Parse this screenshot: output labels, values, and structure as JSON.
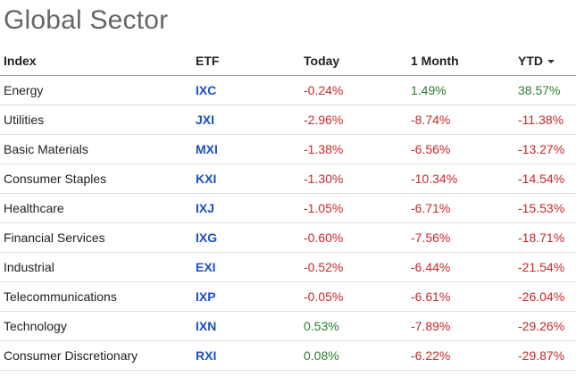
{
  "title": "Global Sector",
  "columns": {
    "index": "Index",
    "etf": "ETF",
    "today": "Today",
    "month": "1 Month",
    "ytd": "YTD"
  },
  "sort": {
    "column": "ytd",
    "icon": "caret-down-icon"
  },
  "colors": {
    "positive": "#2e7d32",
    "negative": "#c62828",
    "link": "#1a4fc9"
  },
  "rows": [
    {
      "index": "Energy",
      "etf": "IXC",
      "today": "-0.24%",
      "month": "1.49%",
      "ytd": "38.57%"
    },
    {
      "index": "Utilities",
      "etf": "JXI",
      "today": "-2.96%",
      "month": "-8.74%",
      "ytd": "-11.38%"
    },
    {
      "index": "Basic Materials",
      "etf": "MXI",
      "today": "-1.38%",
      "month": "-6.56%",
      "ytd": "-13.27%"
    },
    {
      "index": "Consumer Staples",
      "etf": "KXI",
      "today": "-1.30%",
      "month": "-10.34%",
      "ytd": "-14.54%"
    },
    {
      "index": "Healthcare",
      "etf": "IXJ",
      "today": "-1.05%",
      "month": "-6.71%",
      "ytd": "-15.53%"
    },
    {
      "index": "Financial Services",
      "etf": "IXG",
      "today": "-0.60%",
      "month": "-7.56%",
      "ytd": "-18.71%"
    },
    {
      "index": "Industrial",
      "etf": "EXI",
      "today": "-0.52%",
      "month": "-6.44%",
      "ytd": "-21.54%"
    },
    {
      "index": "Telecommunications",
      "etf": "IXP",
      "today": "-0.05%",
      "month": "-6.61%",
      "ytd": "-26.04%"
    },
    {
      "index": "Technology",
      "etf": "IXN",
      "today": "0.53%",
      "month": "-7.89%",
      "ytd": "-29.26%"
    },
    {
      "index": "Consumer Discretionary",
      "etf": "RXI",
      "today": "0.08%",
      "month": "-6.22%",
      "ytd": "-29.87%"
    }
  ]
}
